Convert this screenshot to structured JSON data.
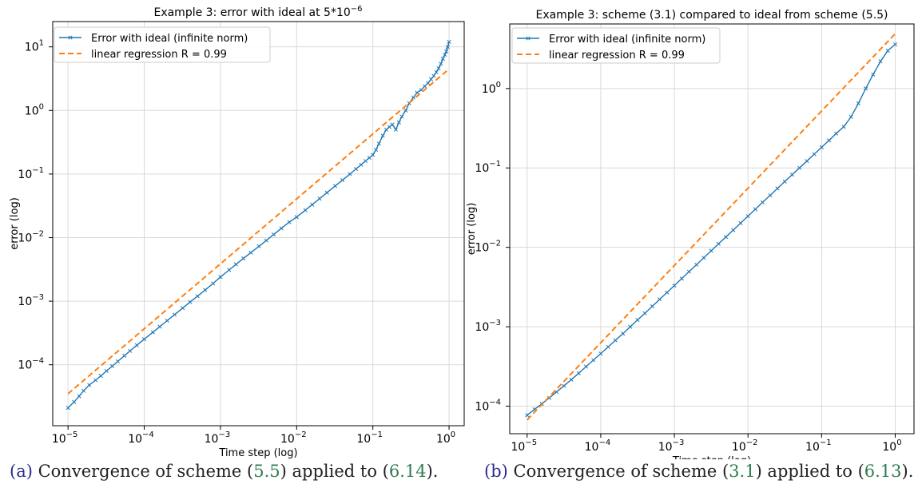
{
  "captions": [
    {
      "label": "(a)",
      "pre": "Convergence of scheme (",
      "ref1": "5.5",
      "mid": ") applied to (",
      "ref2": "6.14",
      "post": ")."
    },
    {
      "label": "(b)",
      "pre": "Convergence of scheme (",
      "ref1": "3.1",
      "mid": ") applied to (",
      "ref2": "6.13",
      "post": ")."
    }
  ],
  "chart_data": [
    {
      "type": "line",
      "title": "Example 3: error with ideal at 5*10",
      "title_sup": "−6",
      "xlabel": "Time step (log)",
      "ylabel": "error (log)",
      "xscale": "log",
      "yscale": "log",
      "xlim": [
        6.3e-06,
        1.58
      ],
      "ylim": [
        1.1e-05,
        25
      ],
      "x_ticks": [
        {
          "exp": "−5",
          "v": 1e-05
        },
        {
          "exp": "−4",
          "v": 0.0001
        },
        {
          "exp": "−3",
          "v": 0.001
        },
        {
          "exp": "−2",
          "v": 0.01
        },
        {
          "exp": "−1",
          "v": 0.1
        },
        {
          "exp": "0",
          "v": 1
        }
      ],
      "y_ticks": [
        {
          "exp": "−4",
          "v": 0.0001
        },
        {
          "exp": "−3",
          "v": 0.001
        },
        {
          "exp": "−2",
          "v": 0.01
        },
        {
          "exp": "−1",
          "v": 0.1
        },
        {
          "exp": "0",
          "v": 1
        },
        {
          "exp": "1",
          "v": 10
        }
      ],
      "grid": true,
      "legend_position": "top-left",
      "series": [
        {
          "name": "Error with ideal (infinite norm)",
          "style": "line-x-markers",
          "color": "#1f77b4",
          "x": [
            1e-05,
            1.2e-05,
            1.4e-05,
            1.6e-05,
            1.9e-05,
            2.3e-05,
            2.7e-05,
            3.2e-05,
            3.8e-05,
            4.5e-05,
            5.5e-05,
            6.5e-05,
            8e-05,
            0.0001,
            0.00013,
            0.00016,
            0.0002,
            0.00025,
            0.00032,
            0.0004,
            0.0005,
            0.00063,
            0.0008,
            0.001,
            0.0013,
            0.0016,
            0.002,
            0.0025,
            0.0032,
            0.004,
            0.005,
            0.0063,
            0.008,
            0.01,
            0.013,
            0.016,
            0.02,
            0.025,
            0.032,
            0.04,
            0.05,
            0.06,
            0.07,
            0.08,
            0.09,
            0.1,
            0.11,
            0.12,
            0.135,
            0.15,
            0.165,
            0.18,
            0.2,
            0.22,
            0.24,
            0.27,
            0.3,
            0.34,
            0.38,
            0.43,
            0.48,
            0.53,
            0.58,
            0.63,
            0.68,
            0.73,
            0.78,
            0.83,
            0.88,
            0.92,
            0.96,
            1.0
          ],
          "y": [
            2.1e-05,
            2.6e-05,
            3.2e-05,
            3.9e-05,
            4.8e-05,
            5.7e-05,
            6.7e-05,
            8e-05,
            9.5e-05,
            0.000113,
            0.000139,
            0.000165,
            0.000203,
            0.000252,
            0.000325,
            0.000398,
            0.000494,
            0.000615,
            0.00078,
            0.00097,
            0.0012,
            0.0015,
            0.0019,
            0.0024,
            0.0031,
            0.0038,
            0.0047,
            0.0058,
            0.0073,
            0.009,
            0.0112,
            0.014,
            0.0175,
            0.021,
            0.027,
            0.033,
            0.041,
            0.051,
            0.065,
            0.08,
            0.1,
            0.12,
            0.14,
            0.16,
            0.18,
            0.2,
            0.24,
            0.3,
            0.4,
            0.5,
            0.55,
            0.6,
            0.5,
            0.65,
            0.8,
            1.0,
            1.3,
            1.6,
            1.9,
            2.1,
            2.4,
            2.7,
            3.1,
            3.5,
            4.0,
            4.6,
            5.4,
            6.5,
            7.5,
            8.5,
            10.0,
            12.0
          ]
        },
        {
          "name": " linear regression R = 0.99",
          "style": "dashed",
          "color": "#ff7f0e",
          "x": [
            1e-05,
            1.0
          ],
          "y": [
            3.5e-05,
            4.5
          ]
        }
      ]
    },
    {
      "type": "line",
      "title": "Example 3: scheme (3.1) compared to ideal from scheme (5.5)",
      "title_sup": "",
      "xlabel": "Time step (log)",
      "ylabel": "error (log)",
      "xscale": "log",
      "yscale": "log",
      "xlim": [
        5.8e-06,
        1.8
      ],
      "ylim": [
        4.5e-05,
        6.5
      ],
      "x_ticks": [
        {
          "exp": "−5",
          "v": 1e-05
        },
        {
          "exp": "−4",
          "v": 0.0001
        },
        {
          "exp": "−3",
          "v": 0.001
        },
        {
          "exp": "−2",
          "v": 0.01
        },
        {
          "exp": "−1",
          "v": 0.1
        },
        {
          "exp": "0",
          "v": 1
        }
      ],
      "y_ticks": [
        {
          "exp": "−4",
          "v": 0.0001
        },
        {
          "exp": "−3",
          "v": 0.001
        },
        {
          "exp": "−2",
          "v": 0.01
        },
        {
          "exp": "−1",
          "v": 0.1
        },
        {
          "exp": "0",
          "v": 1
        }
      ],
      "grid": true,
      "legend_position": "top-left",
      "series": [
        {
          "name": "Error with ideal (infinite norm)",
          "style": "line-x-markers",
          "color": "#1f77b4",
          "x": [
            1e-05,
            1.26e-05,
            1.58e-05,
            2e-05,
            2.51e-05,
            3.16e-05,
            3.98e-05,
            5.01e-05,
            6.31e-05,
            7.94e-05,
            0.0001,
            0.000126,
            0.000158,
            0.0002,
            0.000251,
            0.000316,
            0.000398,
            0.000501,
            0.000631,
            0.000794,
            0.001,
            0.00126,
            0.00158,
            0.002,
            0.00251,
            0.00316,
            0.00398,
            0.00501,
            0.00631,
            0.00794,
            0.01,
            0.0126,
            0.0158,
            0.02,
            0.0251,
            0.0316,
            0.0398,
            0.0501,
            0.0631,
            0.0794,
            0.1,
            0.126,
            0.158,
            0.2,
            0.251,
            0.316,
            0.398,
            0.501,
            0.631,
            0.794,
            1.0
          ],
          "y": [
            7.7e-05,
            9.1e-05,
            0.000107,
            0.000127,
            0.000151,
            0.00018,
            0.000216,
            0.00026,
            0.000315,
            0.00038,
            0.00046,
            0.000557,
            0.000675,
            0.00082,
            0.001,
            0.00122,
            0.00148,
            0.00181,
            0.00221,
            0.0027,
            0.0033,
            0.00404,
            0.00494,
            0.00605,
            0.0074,
            0.00905,
            0.0111,
            0.0135,
            0.0165,
            0.0202,
            0.0247,
            0.0302,
            0.0369,
            0.0451,
            0.0551,
            0.0673,
            0.0822,
            0.1,
            0.122,
            0.149,
            0.182,
            0.222,
            0.271,
            0.33,
            0.44,
            0.65,
            1.0,
            1.5,
            2.2,
            3.0,
            3.6
          ]
        },
        {
          "name": " linear regression R = 0.99",
          "style": "dashed",
          "color": "#ff7f0e",
          "x": [
            1e-05,
            1.0
          ],
          "y": [
            6.7e-05,
            4.9
          ]
        }
      ]
    }
  ]
}
